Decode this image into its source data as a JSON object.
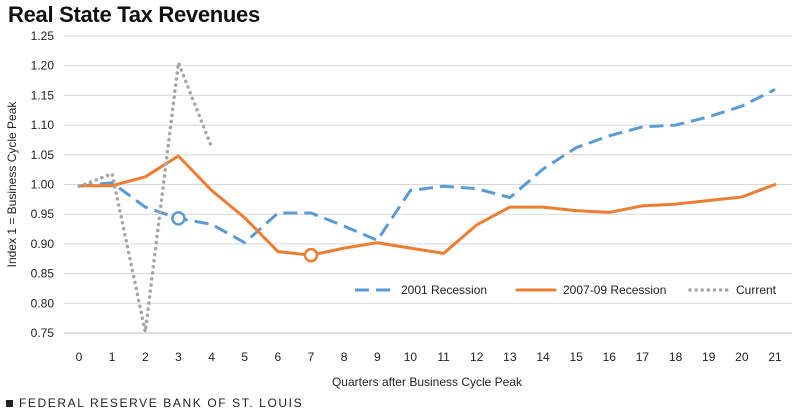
{
  "chart_data": {
    "type": "line",
    "title": "Real State Tax Revenues",
    "xlabel": "Quarters after Business Cycle Peak",
    "ylabel": "Index 1 = Business Cycle Peak",
    "xlim": [
      0,
      21
    ],
    "ylim": [
      0.75,
      1.25
    ],
    "x_ticks": [
      0,
      1,
      2,
      3,
      4,
      5,
      6,
      7,
      8,
      9,
      10,
      11,
      12,
      13,
      14,
      15,
      16,
      17,
      18,
      19,
      20,
      21
    ],
    "y_ticks": [
      0.75,
      0.8,
      0.85,
      0.9,
      0.95,
      1.0,
      1.05,
      1.1,
      1.15,
      1.2,
      1.25
    ],
    "y_tick_labels": [
      "0.75",
      "0.80",
      "0.85",
      "0.90",
      "0.95",
      "1.00",
      "1.05",
      "1.10",
      "1.15",
      "1.20",
      "1.25"
    ],
    "grid": true,
    "legend_position": "bottom-right",
    "series": [
      {
        "name": "2001 Recession",
        "style": "dashed",
        "color": "#5b9bd5",
        "x": [
          0,
          1,
          2,
          3,
          4,
          5,
          6,
          7,
          8,
          9,
          10,
          11,
          12,
          13,
          14,
          15,
          16,
          17,
          18,
          19,
          20,
          21
        ],
        "values": [
          0.997,
          1.003,
          0.962,
          0.943,
          0.933,
          0.902,
          0.952,
          0.952,
          0.93,
          0.906,
          0.99,
          0.997,
          0.993,
          0.978,
          1.026,
          1.062,
          1.082,
          1.097,
          1.1,
          1.114,
          1.132,
          1.16
        ],
        "marker_at_x": 3
      },
      {
        "name": "2007-09 Recession",
        "style": "solid",
        "color": "#ed7d31",
        "x": [
          0,
          1,
          2,
          3,
          4,
          5,
          6,
          7,
          8,
          9,
          10,
          11,
          12,
          13,
          14,
          15,
          16,
          17,
          18,
          19,
          20,
          21
        ],
        "values": [
          0.998,
          0.998,
          1.013,
          1.048,
          0.99,
          0.944,
          0.887,
          0.881,
          0.893,
          0.902,
          0.893,
          0.884,
          0.932,
          0.962,
          0.962,
          0.956,
          0.953,
          0.964,
          0.967,
          0.973,
          0.979,
          1.0
        ],
        "marker_at_x": 7
      },
      {
        "name": "Current",
        "style": "dotted",
        "color": "#a6a6a6",
        "x": [
          0,
          1,
          2,
          3,
          4
        ],
        "values": [
          0.997,
          1.018,
          0.752,
          1.205,
          1.063
        ]
      }
    ]
  },
  "footer": {
    "source": "FEDERAL RESERVE BANK OF ST. LOUIS"
  }
}
